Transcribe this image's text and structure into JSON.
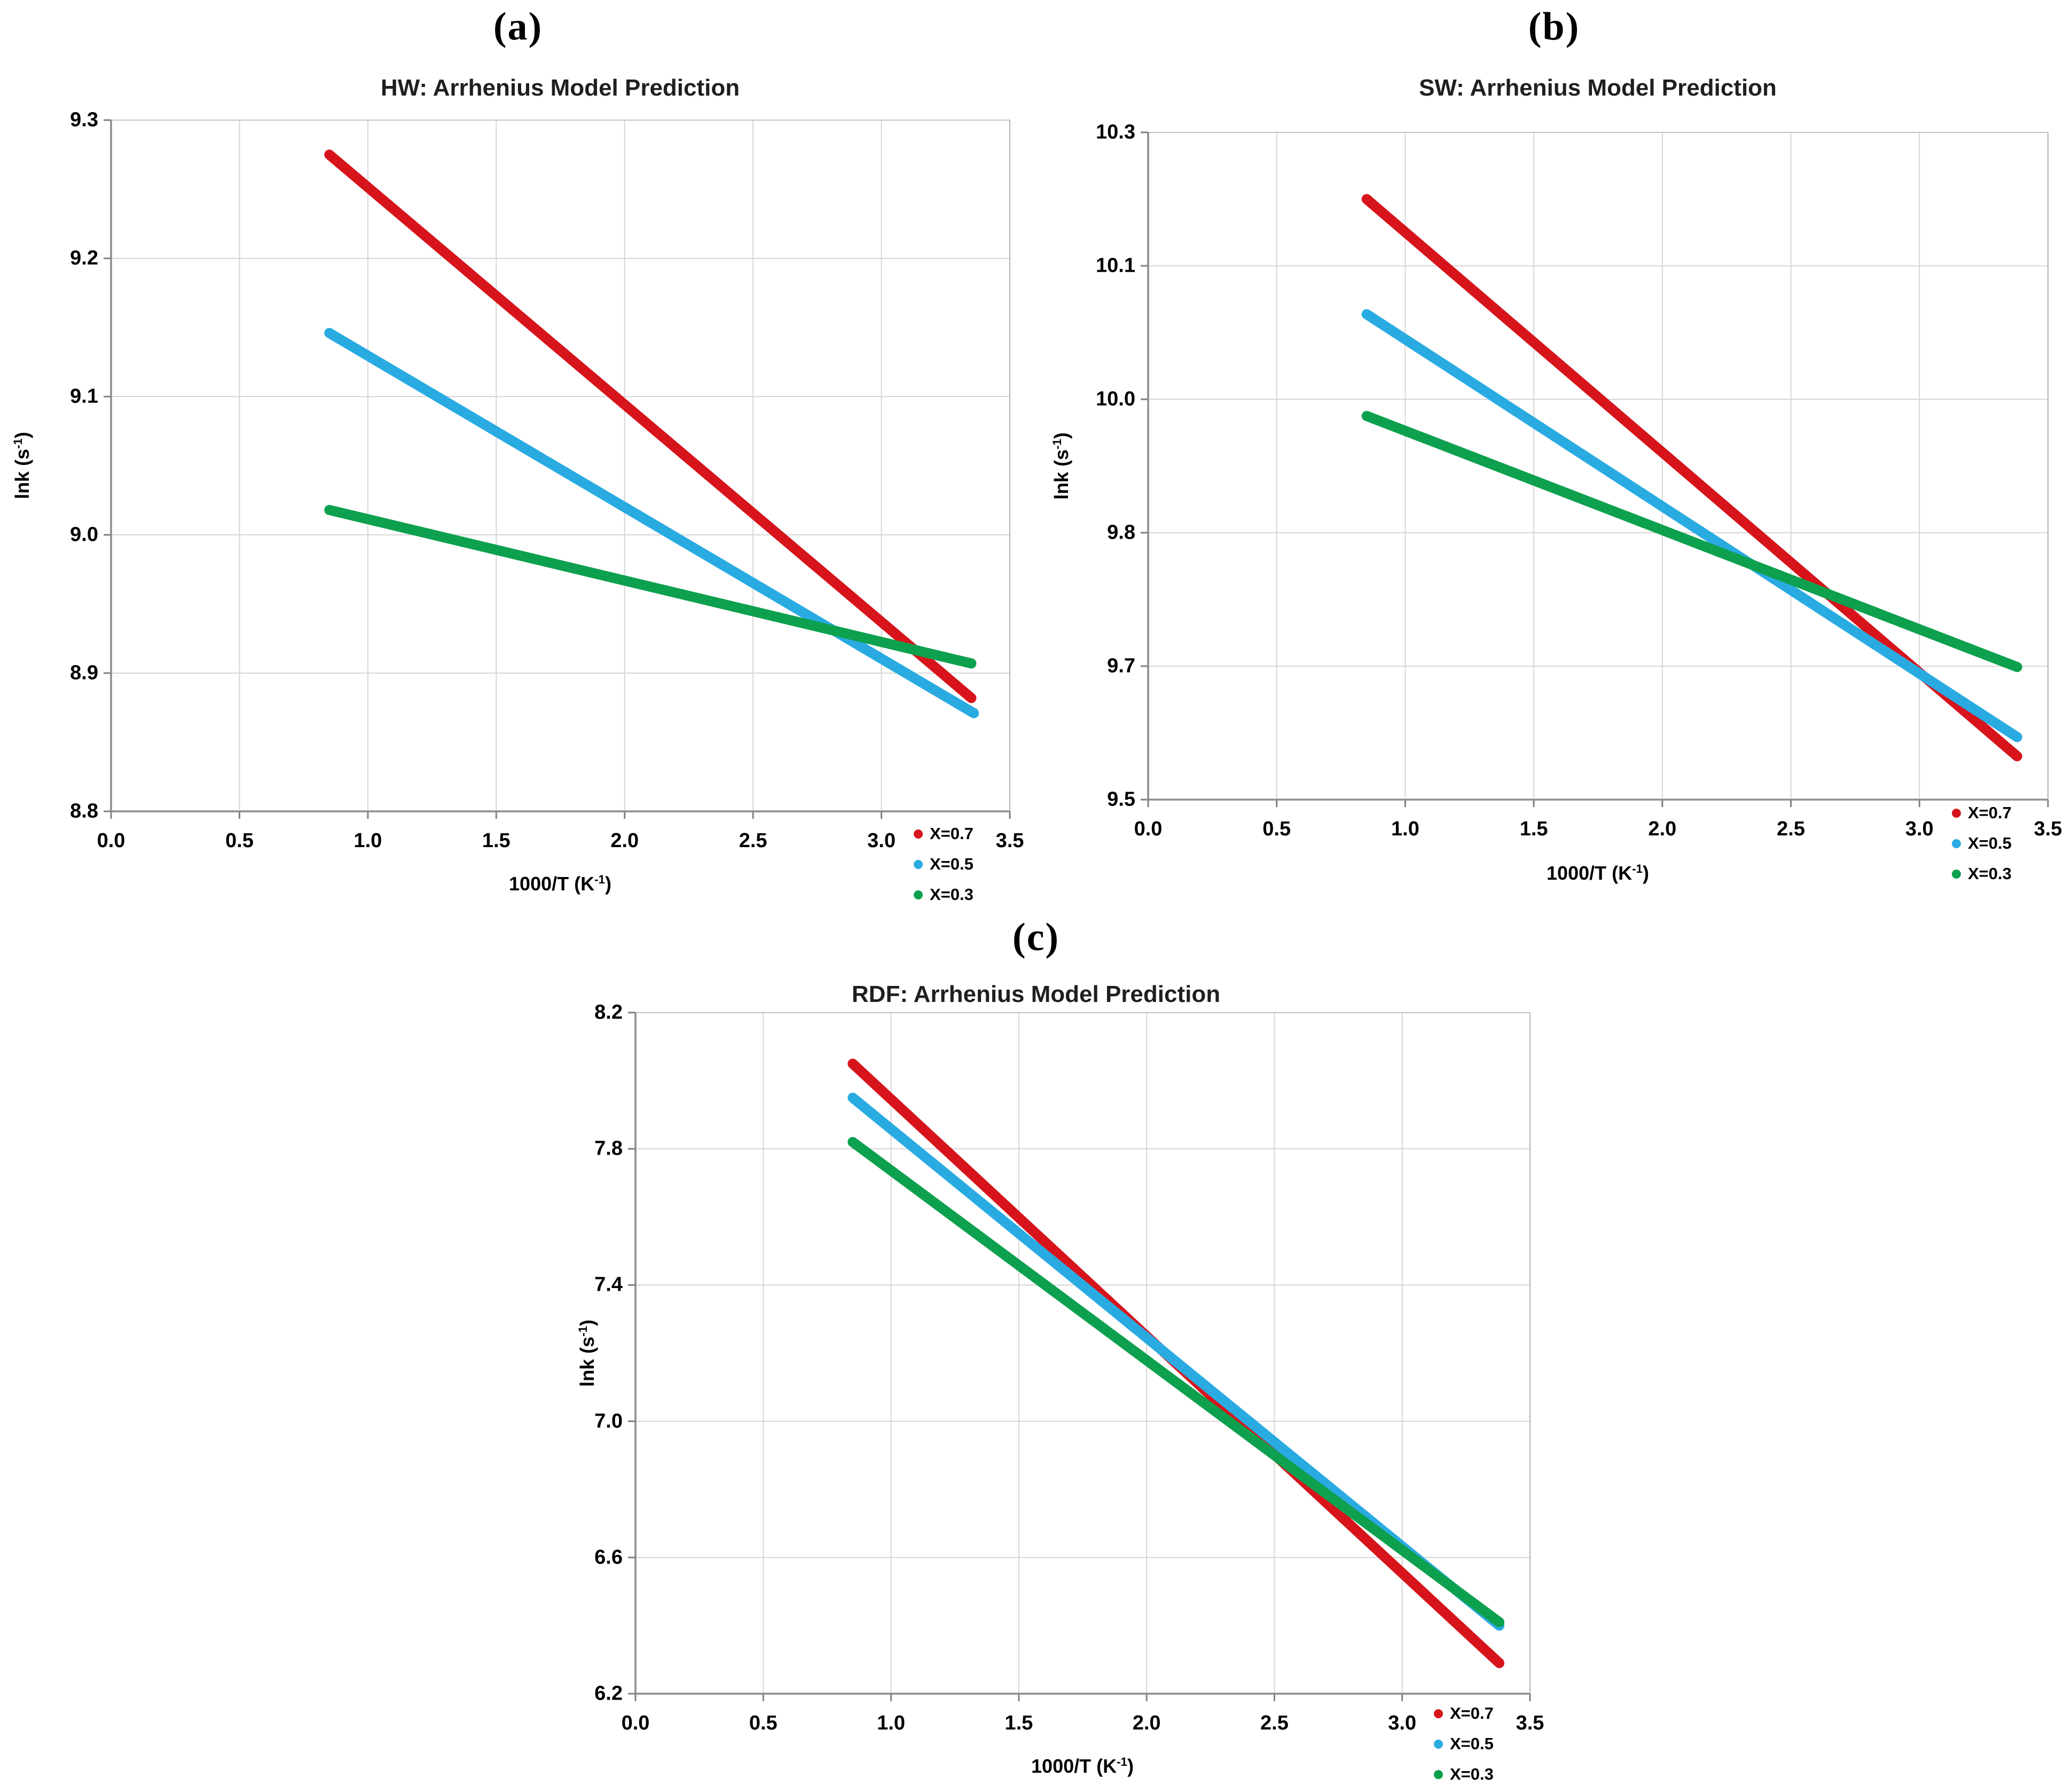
{
  "figure": {
    "panel_labels": [
      "(a)",
      "(b)",
      "(c)"
    ]
  },
  "chart_data": [
    {
      "type": "line",
      "panel_label": "(a)",
      "title": "HW: Arrhenius Model Prediction",
      "xlabel": {
        "main": "1000/T (K",
        "sup": "-1",
        "end": ")"
      },
      "ylabel": {
        "main": "lnk (s",
        "sup": "-1",
        "end": ")"
      },
      "xlim": [
        0,
        3.5
      ],
      "x_ticks": [
        "0.0",
        "0.5",
        "1.0",
        "1.5",
        "2.0",
        "2.5",
        "3.0",
        "3.5"
      ],
      "ylim": [
        8.8,
        9.3
      ],
      "y_ticks": [
        {
          "v": 9.3,
          "label": "9.3"
        },
        {
          "v": 9.2,
          "label": "9.2"
        },
        {
          "v": 9.1,
          "label": "9.1"
        },
        {
          "v": 9.0,
          "label": "9.0"
        },
        {
          "v": 8.9,
          "label": "8.9"
        },
        {
          "v": 8.8,
          "label": "8.8"
        }
      ],
      "grid": true,
      "legend_position": "top-right",
      "series": [
        {
          "name": "X=0.7",
          "color": "#d7141b",
          "points": [
            [
              0.85,
              9.275
            ],
            [
              3.35,
              8.882
            ]
          ]
        },
        {
          "name": "X=0.5",
          "color": "#29abe2",
          "points": [
            [
              0.85,
              9.146
            ],
            [
              3.36,
              8.871
            ]
          ]
        },
        {
          "name": "X=0.3",
          "color": "#0da04e",
          "points": [
            [
              0.85,
              9.018
            ],
            [
              3.35,
              8.907
            ]
          ]
        }
      ]
    },
    {
      "type": "line",
      "panel_label": "(b)",
      "title": "SW: Arrhenius Model Prediction",
      "xlabel": {
        "main": "1000/T (K",
        "sup": "-1",
        "end": ")"
      },
      "ylabel": {
        "main": "lnk (s",
        "sup": "-1",
        "end": ")"
      },
      "xlim": [
        0,
        3.5
      ],
      "x_ticks": [
        "0.0",
        "0.5",
        "1.0",
        "1.5",
        "2.0",
        "2.5",
        "3.0",
        "3.5"
      ],
      "ylim": [
        9.5,
        10.3
      ],
      "y_ticks": [
        {
          "v": 10.3,
          "label": "10.3"
        },
        {
          "v": 10.14,
          "label": "10.1"
        },
        {
          "v": 9.98,
          "label": "10.0"
        },
        {
          "v": 9.82,
          "label": "9.8"
        },
        {
          "v": 9.66,
          "label": "9.7"
        },
        {
          "v": 9.5,
          "label": "9.5"
        }
      ],
      "grid": true,
      "legend_position": "top-right",
      "series": [
        {
          "name": "X=0.7",
          "color": "#d7141b",
          "points": [
            [
              0.85,
              10.22
            ],
            [
              3.38,
              9.552
            ]
          ]
        },
        {
          "name": "X=0.5",
          "color": "#29abe2",
          "points": [
            [
              0.85,
              10.082
            ],
            [
              3.38,
              9.575
            ]
          ]
        },
        {
          "name": "X=0.3",
          "color": "#0da04e",
          "points": [
            [
              0.85,
              9.96
            ],
            [
              3.38,
              9.659
            ]
          ]
        }
      ]
    },
    {
      "type": "line",
      "panel_label": "(c)",
      "title": "RDF: Arrhenius Model Prediction",
      "xlabel": {
        "main": "1000/T (K",
        "sup": "-1",
        "end": ")"
      },
      "ylabel": {
        "main": "lnk (s",
        "sup": "-1",
        "end": ")"
      },
      "xlim": [
        0,
        3.5
      ],
      "x_ticks": [
        "0.0",
        "0.5",
        "1.0",
        "1.5",
        "2.0",
        "2.5",
        "3.0",
        "3.5"
      ],
      "ylim": [
        6.2,
        8.2
      ],
      "y_ticks": [
        {
          "v": 8.2,
          "label": "8.2"
        },
        {
          "v": 7.8,
          "label": "7.8"
        },
        {
          "v": 7.4,
          "label": "7.4"
        },
        {
          "v": 7.0,
          "label": "7.0"
        },
        {
          "v": 6.6,
          "label": "6.6"
        },
        {
          "v": 6.2,
          "label": "6.2"
        }
      ],
      "grid": true,
      "legend_position": "top-right",
      "series": [
        {
          "name": "X=0.7",
          "color": "#d7141b",
          "points": [
            [
              0.85,
              8.05
            ],
            [
              3.38,
              6.29
            ]
          ]
        },
        {
          "name": "X=0.5",
          "color": "#29abe2",
          "points": [
            [
              0.85,
              7.95
            ],
            [
              3.38,
              6.4
            ]
          ]
        },
        {
          "name": "X=0.3",
          "color": "#0da04e",
          "points": [
            [
              0.85,
              7.82
            ],
            [
              3.38,
              6.41
            ]
          ]
        }
      ]
    }
  ]
}
